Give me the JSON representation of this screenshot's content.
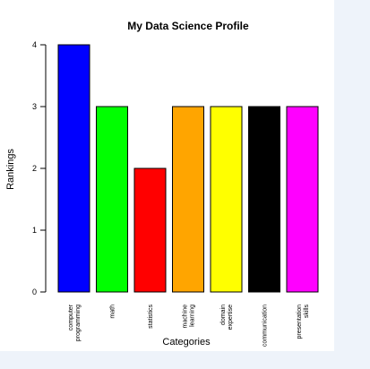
{
  "chart_data": {
    "type": "bar",
    "title": "My Data Science Profile",
    "xlabel": "Categories",
    "ylabel": "Rankings",
    "ylim": [
      0,
      4
    ],
    "yticks": [
      0,
      1,
      2,
      3,
      4
    ],
    "categories": [
      [
        "computer",
        "programming"
      ],
      [
        "math"
      ],
      [
        "statistics"
      ],
      [
        "machine",
        "learning"
      ],
      [
        "domain",
        "expertise"
      ],
      [
        "communication"
      ],
      [
        "presentation",
        "skills"
      ]
    ],
    "values": [
      4,
      3,
      2,
      3,
      3,
      3,
      3
    ],
    "colors": [
      "#0000ff",
      "#00ff00",
      "#ff0000",
      "#ffa500",
      "#ffff00",
      "#000000",
      "#ff00ff"
    ],
    "legend": "none",
    "grid": false
  }
}
